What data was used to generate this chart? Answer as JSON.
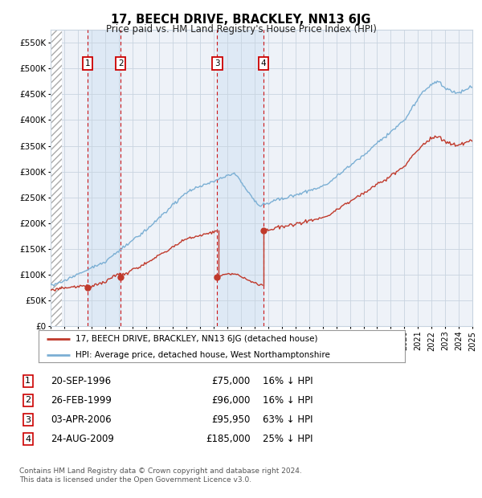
{
  "title": "17, BEECH DRIVE, BRACKLEY, NN13 6JG",
  "subtitle": "Price paid vs. HM Land Registry's House Price Index (HPI)",
  "ylim": [
    0,
    575000
  ],
  "yticks": [
    0,
    50000,
    100000,
    150000,
    200000,
    250000,
    300000,
    350000,
    400000,
    450000,
    500000,
    550000
  ],
  "ytick_labels": [
    "£0",
    "£50K",
    "£100K",
    "£150K",
    "£200K",
    "£250K",
    "£300K",
    "£350K",
    "£400K",
    "£450K",
    "£500K",
    "£550K"
  ],
  "x_start_year": 1994,
  "x_end_year": 2025,
  "hpi_color": "#7bafd4",
  "price_color": "#c0392b",
  "background_color": "#ffffff",
  "plot_bg_color": "#eef2f8",
  "grid_color": "#c8d4e0",
  "shade_color": "#dce8f5",
  "purchases": [
    {
      "label": "1",
      "date_num": 1996.72,
      "price": 75000,
      "date_str": "20-SEP-1996",
      "pct": "16%"
    },
    {
      "label": "2",
      "date_num": 1999.15,
      "price": 96000,
      "date_str": "26-FEB-1999",
      "pct": "16%"
    },
    {
      "label": "3",
      "date_num": 2006.25,
      "price": 95950,
      "date_str": "03-APR-2006",
      "pct": "63%"
    },
    {
      "label": "4",
      "date_num": 2009.64,
      "price": 185000,
      "date_str": "24-AUG-2009",
      "pct": "25%"
    }
  ],
  "legend_line1": "17, BEECH DRIVE, BRACKLEY, NN13 6JG (detached house)",
  "legend_line2": "HPI: Average price, detached house, West Northamptonshire",
  "footer": "Contains HM Land Registry data © Crown copyright and database right 2024.\nThis data is licensed under the Open Government Licence v3.0."
}
